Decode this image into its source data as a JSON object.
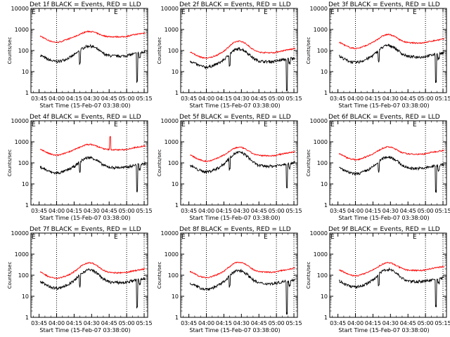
{
  "ylabel": "Counts/sec",
  "xlabel": "Start Time (15-Feb-07 03:38:00)",
  "x_tick_labels": [
    "03:45",
    "04:00",
    "04:15",
    "04:30",
    "04:45",
    "05:00",
    "05:15"
  ],
  "y_tick_labels": [
    "1",
    "10",
    "100",
    "1000",
    "10000"
  ],
  "colors": {
    "events": "#000000",
    "lld": "#ff0000",
    "axes": "#000000"
  },
  "chart_data": [
    {
      "type": "line",
      "title": "Det 1f BLACK = Events, RED = LLD",
      "events_base": 55,
      "lld_base": 450,
      "lld_bump": 1.8,
      "events_bump": 3.0,
      "lld_spike": false,
      "dip1": 0.25,
      "dip2": 0.05
    },
    {
      "type": "line",
      "title": "Det 2f BLACK = Events, RED = LLD",
      "events_base": 30,
      "lld_base": 80,
      "lld_bump": 3.5,
      "events_bump": 4.0,
      "lld_spike": false,
      "dip1": 0.3,
      "dip2": 0.03
    },
    {
      "type": "line",
      "title": "Det 3f BLACK = Events, RED = LLD",
      "events_base": 50,
      "lld_base": 230,
      "lld_bump": 2.5,
      "events_bump": 3.5,
      "lld_spike": false,
      "dip1": 0.3,
      "dip2": 0.05
    },
    {
      "type": "line",
      "title": "Det 4f BLACK = Events, RED = LLD",
      "events_base": 60,
      "lld_base": 420,
      "lld_bump": 1.8,
      "events_bump": 3.0,
      "lld_spike": true,
      "dip1": 0.35,
      "dip2": 0.06
    },
    {
      "type": "line",
      "title": "Det 5f BLACK = Events, RED = LLD",
      "events_base": 70,
      "lld_base": 220,
      "lld_bump": 2.5,
      "events_bump": 4.5,
      "lld_spike": false,
      "dip1": 0.3,
      "dip2": 0.08
    },
    {
      "type": "line",
      "title": "Det 6f BLACK = Events, RED = LLD",
      "events_base": 55,
      "lld_base": 260,
      "lld_bump": 2.2,
      "events_bump": 3.5,
      "lld_spike": false,
      "dip1": 0.35,
      "dip2": 0.06
    },
    {
      "type": "line",
      "title": "Det 7f BLACK = Events, RED = LLD",
      "events_base": 45,
      "lld_base": 130,
      "lld_bump": 3.0,
      "events_bump": 4.0,
      "lld_spike": false,
      "dip1": 0.3,
      "dip2": 0.05
    },
    {
      "type": "line",
      "title": "Det 8f BLACK = Events, RED = LLD",
      "events_base": 40,
      "lld_base": 140,
      "lld_bump": 3.0,
      "events_bump": 4.2,
      "lld_spike": false,
      "dip1": 0.3,
      "dip2": 0.03
    },
    {
      "type": "line",
      "title": "Det 9f BLACK = Events, RED = LLD",
      "events_base": 50,
      "lld_base": 170,
      "lld_bump": 2.3,
      "events_bump": 3.8,
      "lld_spike": false,
      "dip1": 0.3,
      "dip2": 0.05
    }
  ]
}
